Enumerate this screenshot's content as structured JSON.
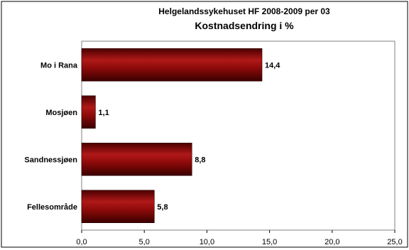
{
  "chart_data": {
    "type": "bar",
    "orientation": "horizontal",
    "title": "Helgelandssykehuset HF 2008-2009 per 03",
    "subtitle": "Kostnadsendring i %",
    "categories": [
      "Mo i Rana",
      "Mosjøen",
      "Sandnessjøen",
      "Fellesområde"
    ],
    "values": [
      14.4,
      1.1,
      8.8,
      5.8
    ],
    "value_labels": [
      "14,4",
      "1,1",
      "8,8",
      "5,8"
    ],
    "xlim": [
      0,
      25
    ],
    "xticks": [
      0,
      5,
      10,
      15,
      20,
      25
    ],
    "xtick_labels": [
      "0,0",
      "5,0",
      "10,0",
      "15,0",
      "20,0",
      "25,0"
    ],
    "grid": false,
    "legend": "none",
    "bar_color": "#8b0000"
  }
}
